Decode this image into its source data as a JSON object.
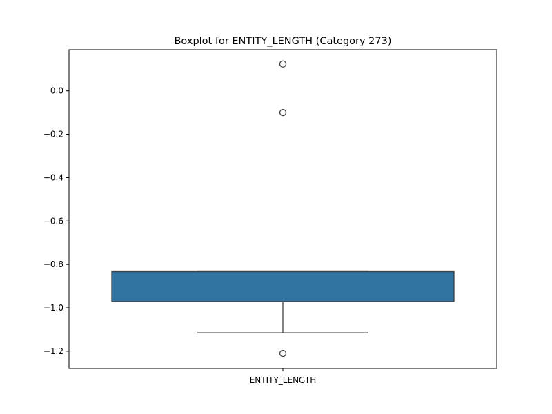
{
  "chart_data": {
    "type": "box",
    "title": "Boxplot for ENTITY_LENGTH (Category 273)",
    "xlabel": "",
    "ylabel": "",
    "categories": [
      "ENTITY_LENGTH"
    ],
    "ylim": [
      -1.28,
      0.19
    ],
    "yticks": [
      0.0,
      -0.2,
      -0.4,
      -0.6,
      -0.8,
      -1.0,
      -1.2
    ],
    "ytick_labels": [
      "0.0",
      "−0.2",
      "−0.4",
      "−0.6",
      "−0.8",
      "−1.0",
      "−1.2"
    ],
    "grid": false,
    "box": {
      "q1": -0.972,
      "median": -0.972,
      "q3": -0.833,
      "whisker_low": -1.115,
      "whisker_high": -0.833,
      "outliers": [
        0.124,
        -0.1,
        -1.21
      ]
    },
    "colors": {
      "box_fill": "#3274a1",
      "box_edge": "#3f3f3f",
      "axes": "#000000"
    }
  }
}
